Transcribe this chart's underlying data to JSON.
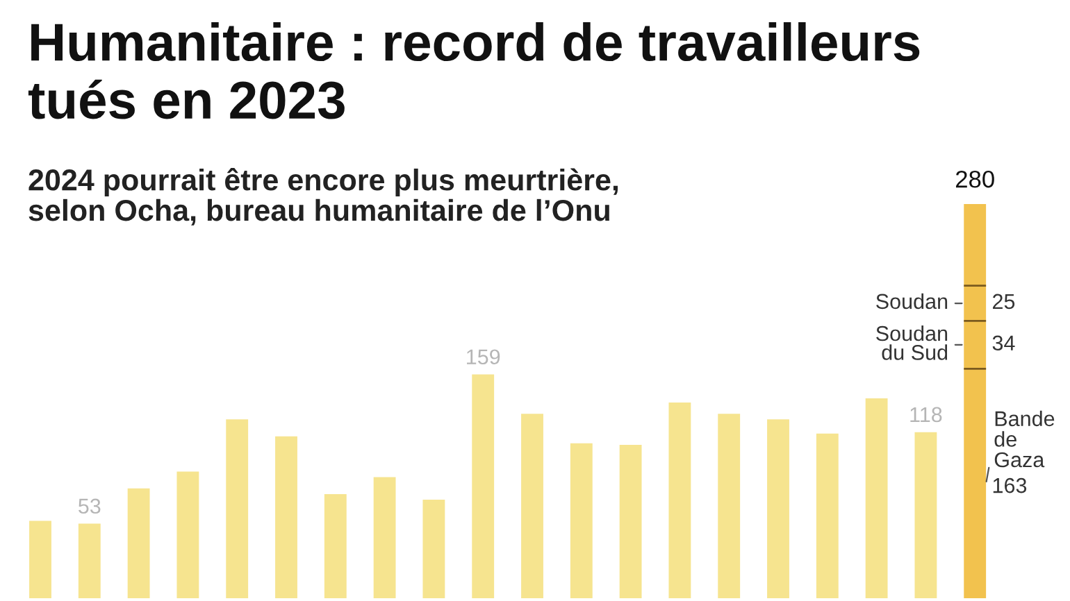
{
  "chart_data": {
    "type": "bar",
    "title": "Humanitaire : record de travailleurs\ntués en 2023",
    "subtitle": "2024 pourrait être encore plus meurtrière,\nselon Ocha, bureau humanitaire de l’Onu",
    "categories": [
      null,
      null,
      null,
      null,
      null,
      null,
      null,
      null,
      null,
      null,
      null,
      null,
      null,
      null,
      null,
      null,
      null,
      null,
      null,
      null
    ],
    "stacked": true,
    "tick_labels": false,
    "series": [
      {
        "name": "Bande\nde\nGaza",
        "color": "#f2c24e",
        "values": [
          null,
          null,
          null,
          null,
          null,
          null,
          null,
          null,
          null,
          null,
          null,
          null,
          null,
          null,
          null,
          null,
          null,
          null,
          null,
          163
        ],
        "value_labels": [
          null,
          null,
          null,
          null,
          null,
          null,
          null,
          null,
          null,
          null,
          null,
          null,
          null,
          null,
          null,
          null,
          null,
          null,
          null,
          "163"
        ]
      },
      {
        "name": "Soudan\ndu Sud",
        "color": "#f2c24e",
        "values": [
          null,
          null,
          null,
          null,
          null,
          null,
          null,
          null,
          null,
          null,
          null,
          null,
          null,
          null,
          null,
          null,
          null,
          null,
          null,
          34
        ],
        "value_labels": [
          null,
          null,
          null,
          null,
          null,
          null,
          null,
          null,
          null,
          null,
          null,
          null,
          null,
          null,
          null,
          null,
          null,
          null,
          null,
          "34"
        ]
      },
      {
        "name": "Soudan",
        "color": "#f2c24e",
        "values": [
          null,
          null,
          null,
          null,
          null,
          null,
          null,
          null,
          null,
          null,
          null,
          null,
          null,
          null,
          null,
          null,
          null,
          null,
          null,
          25
        ],
        "value_labels": [
          null,
          null,
          null,
          null,
          null,
          null,
          null,
          null,
          null,
          null,
          null,
          null,
          null,
          null,
          null,
          null,
          null,
          null,
          null,
          "25"
        ]
      },
      {
        "colors": [
          "#f6e48f",
          "#f6e48f",
          "#f6e48f",
          "#f6e48f",
          "#f6e48f",
          "#f6e48f",
          "#f6e48f",
          "#f6e48f",
          "#f6e48f",
          "#f6e48f",
          "#f6e48f",
          "#f6e48f",
          "#f6e48f",
          "#f6e48f",
          "#f6e48f",
          "#f6e48f",
          "#f6e48f",
          "#f6e48f",
          "#f6e48f",
          "#f2c24e"
        ],
        "values": [
          55,
          53,
          78,
          90,
          127,
          115,
          74,
          86,
          70,
          159,
          131,
          110,
          109,
          139,
          131,
          127,
          117,
          142,
          118,
          58
        ],
        "value_labels": [
          null,
          "53",
          null,
          null,
          null,
          null,
          null,
          null,
          null,
          "159",
          null,
          null,
          null,
          null,
          null,
          null,
          null,
          null,
          "118",
          null
        ]
      }
    ],
    "totals": [
      null,
      null,
      null,
      null,
      null,
      null,
      null,
      null,
      null,
      null,
      null,
      null,
      null,
      null,
      null,
      null,
      null,
      null,
      null,
      "280"
    ]
  }
}
